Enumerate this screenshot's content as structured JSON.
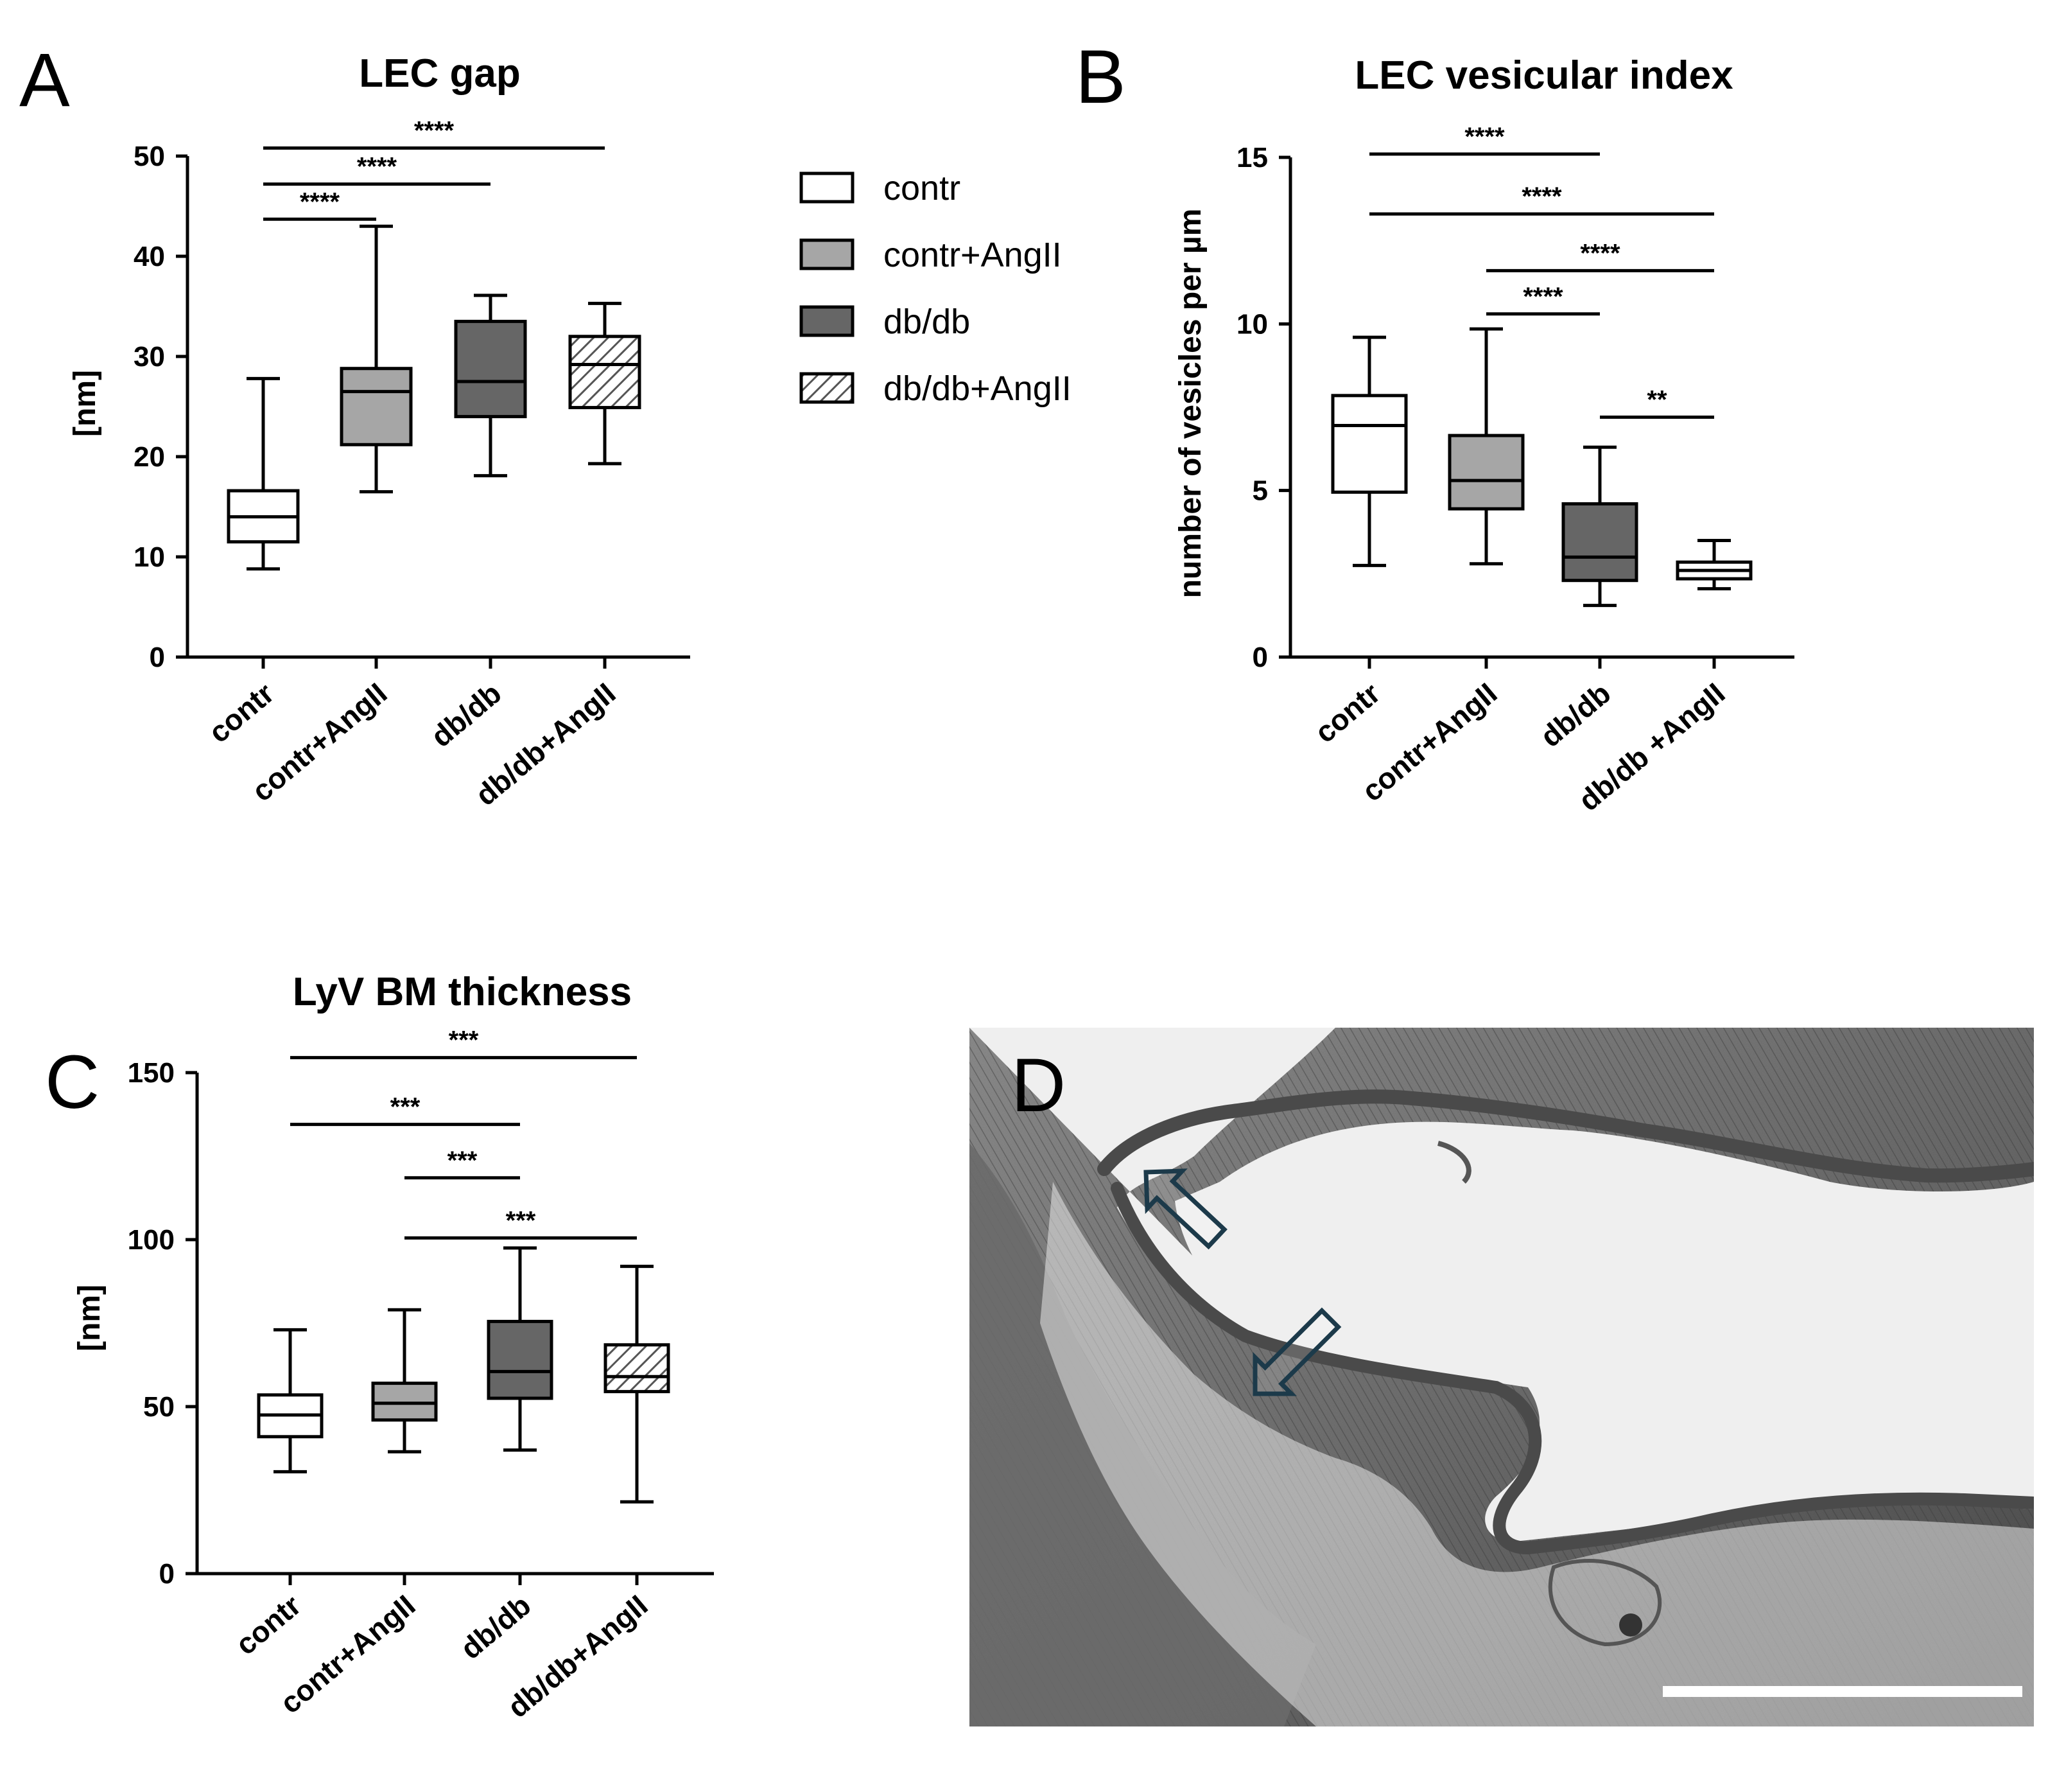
{
  "figure": {
    "legend": {
      "items": [
        {
          "label": "contr",
          "fill": "white"
        },
        {
          "label": "contr+AngII",
          "fill": "light"
        },
        {
          "label": "db/db",
          "fill": "dark"
        },
        {
          "label": "db/db+AngII",
          "fill": "hatch"
        }
      ]
    },
    "colors": {
      "light": "#a6a6a6",
      "dark": "#666666",
      "white": "#ffffff",
      "hatch_bg": "#ffffff",
      "hatch_line": "#555555"
    },
    "panel_d": {
      "letter": "D",
      "description_icon": "tem-micrograph-image",
      "arrow_color": "#1c3a4a"
    }
  },
  "chart_data": [
    {
      "letter": "A",
      "type": "box",
      "title": "LEC gap",
      "ylabel": "[nm]",
      "ylim": [
        0,
        50
      ],
      "yticks": [
        0,
        10,
        20,
        30,
        40,
        50
      ],
      "categories": [
        "contr",
        "contr+AngII",
        "db/db",
        "db/db+AngII"
      ],
      "fills": [
        "white",
        "light",
        "dark",
        "hatch"
      ],
      "boxes": [
        {
          "min": 8.8,
          "q1": 11.5,
          "median": 14.0,
          "q3": 16.6,
          "max": 27.8
        },
        {
          "min": 16.5,
          "q1": 21.2,
          "median": 26.5,
          "q3": 28.8,
          "max": 43.0
        },
        {
          "min": 18.1,
          "q1": 24.0,
          "median": 27.5,
          "q3": 33.5,
          "max": 36.1
        },
        {
          "min": 19.3,
          "q1": 24.9,
          "median": 29.2,
          "q3": 32.0,
          "max": 35.3
        }
      ],
      "significance": [
        {
          "from": 0,
          "to": 3,
          "label": "****",
          "level": 50.8
        },
        {
          "from": 0,
          "to": 2,
          "label": "****",
          "level": 47.2
        },
        {
          "from": 0,
          "to": 1,
          "label": "****",
          "level": 43.7
        }
      ]
    },
    {
      "letter": "B",
      "type": "box",
      "title": "LEC vesicular index",
      "ylabel": "number of vesicles per µm",
      "ylim": [
        0,
        15
      ],
      "yticks": [
        0,
        5,
        10,
        15
      ],
      "categories": [
        "contr",
        "contr+AngII",
        "db/db",
        "db/db +AngII"
      ],
      "fills": [
        "white",
        "light",
        "dark",
        "white"
      ],
      "boxes": [
        {
          "min": 2.75,
          "q1": 4.95,
          "median": 6.95,
          "q3": 7.85,
          "max": 9.6
        },
        {
          "min": 2.8,
          "q1": 4.45,
          "median": 5.3,
          "q3": 6.65,
          "max": 9.85
        },
        {
          "min": 1.55,
          "q1": 2.3,
          "median": 3.0,
          "q3": 4.6,
          "max": 6.3
        },
        {
          "min": 2.05,
          "q1": 2.35,
          "median": 2.6,
          "q3": 2.85,
          "max": 3.5
        }
      ],
      "significance": [
        {
          "from": 0,
          "to": 2,
          "label": "****",
          "level": 15.1
        },
        {
          "from": 0,
          "to": 3,
          "label": "****",
          "level": 13.3
        },
        {
          "from": 1,
          "to": 3,
          "label": "****",
          "level": 11.6
        },
        {
          "from": 1,
          "to": 2,
          "label": "****",
          "level": 10.3
        },
        {
          "from": 2,
          "to": 3,
          "label": "**",
          "level": 7.2
        }
      ]
    },
    {
      "letter": "C",
      "type": "box",
      "title": "LyV BM thickness",
      "ylabel": "[nm]",
      "ylim": [
        0,
        150
      ],
      "yticks": [
        0,
        50,
        100,
        150
      ],
      "categories": [
        "contr",
        "contr+AngII",
        "db/db",
        "db/db+AngII"
      ],
      "fills": [
        "white",
        "light",
        "dark",
        "hatch"
      ],
      "boxes": [
        {
          "min": 30.5,
          "q1": 41.0,
          "median": 47.5,
          "q3": 53.5,
          "max": 73.0
        },
        {
          "min": 36.5,
          "q1": 46.0,
          "median": 51.0,
          "q3": 57.0,
          "max": 79.0
        },
        {
          "min": 37.0,
          "q1": 52.5,
          "median": 60.5,
          "q3": 75.5,
          "max": 97.5
        },
        {
          "min": 21.5,
          "q1": 54.5,
          "median": 59.0,
          "q3": 68.5,
          "max": 92.0
        }
      ],
      "significance": [
        {
          "from": 0,
          "to": 3,
          "label": "***",
          "level": 154.5
        },
        {
          "from": 0,
          "to": 2,
          "label": "***",
          "level": 134.5
        },
        {
          "from": 1,
          "to": 2,
          "label": "***",
          "level": 118.5
        },
        {
          "from": 1,
          "to": 3,
          "label": "***",
          "level": 100.5
        }
      ]
    }
  ]
}
